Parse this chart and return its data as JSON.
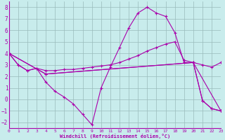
{
  "xlabel": "Windchill (Refroidissement éolien,°C)",
  "xlim": [
    0,
    23
  ],
  "ylim": [
    -2.5,
    8.5
  ],
  "yticks": [
    -2,
    -1,
    0,
    1,
    2,
    3,
    4,
    5,
    6,
    7,
    8
  ],
  "xticks": [
    0,
    1,
    2,
    3,
    4,
    5,
    6,
    7,
    8,
    9,
    10,
    11,
    12,
    13,
    14,
    15,
    16,
    17,
    18,
    19,
    20,
    21,
    22,
    23
  ],
  "bg_color": "#c8ecec",
  "line_color": "#aa00aa",
  "grid_color": "#99bbbb",
  "curve1_x": [
    0,
    1,
    2,
    3,
    4,
    5,
    6,
    7,
    8,
    9,
    10,
    11,
    12,
    13,
    14,
    15,
    16,
    17,
    18,
    19,
    20,
    21,
    22,
    23
  ],
  "curve1_y": [
    4.0,
    3.0,
    2.5,
    2.7,
    1.5,
    0.7,
    0.2,
    -0.4,
    -1.3,
    -2.2,
    1.0,
    2.8,
    4.5,
    6.2,
    7.5,
    8.0,
    7.5,
    7.2,
    5.8,
    3.2,
    3.2,
    -0.1,
    -0.8,
    -1.0
  ],
  "curve2_x": [
    0,
    1,
    2,
    3,
    4,
    5,
    6,
    7,
    8,
    9,
    10,
    11,
    12,
    13,
    14,
    15,
    16,
    17,
    18,
    19,
    20,
    21,
    22,
    23
  ],
  "curve2_y": [
    4.0,
    3.0,
    2.5,
    2.7,
    2.5,
    2.5,
    2.6,
    2.6,
    2.7,
    2.8,
    2.9,
    3.0,
    3.2,
    3.5,
    3.8,
    4.2,
    4.5,
    4.8,
    5.0,
    3.4,
    3.2,
    3.0,
    2.8,
    3.2
  ],
  "curve3_x": [
    0,
    4,
    20,
    21,
    22,
    23
  ],
  "curve3_y": [
    4.0,
    2.2,
    3.2,
    -0.1,
    -0.8,
    -1.0
  ],
  "curve4_x": [
    0,
    4,
    20,
    23
  ],
  "curve4_y": [
    4.0,
    2.2,
    3.2,
    -1.0
  ]
}
